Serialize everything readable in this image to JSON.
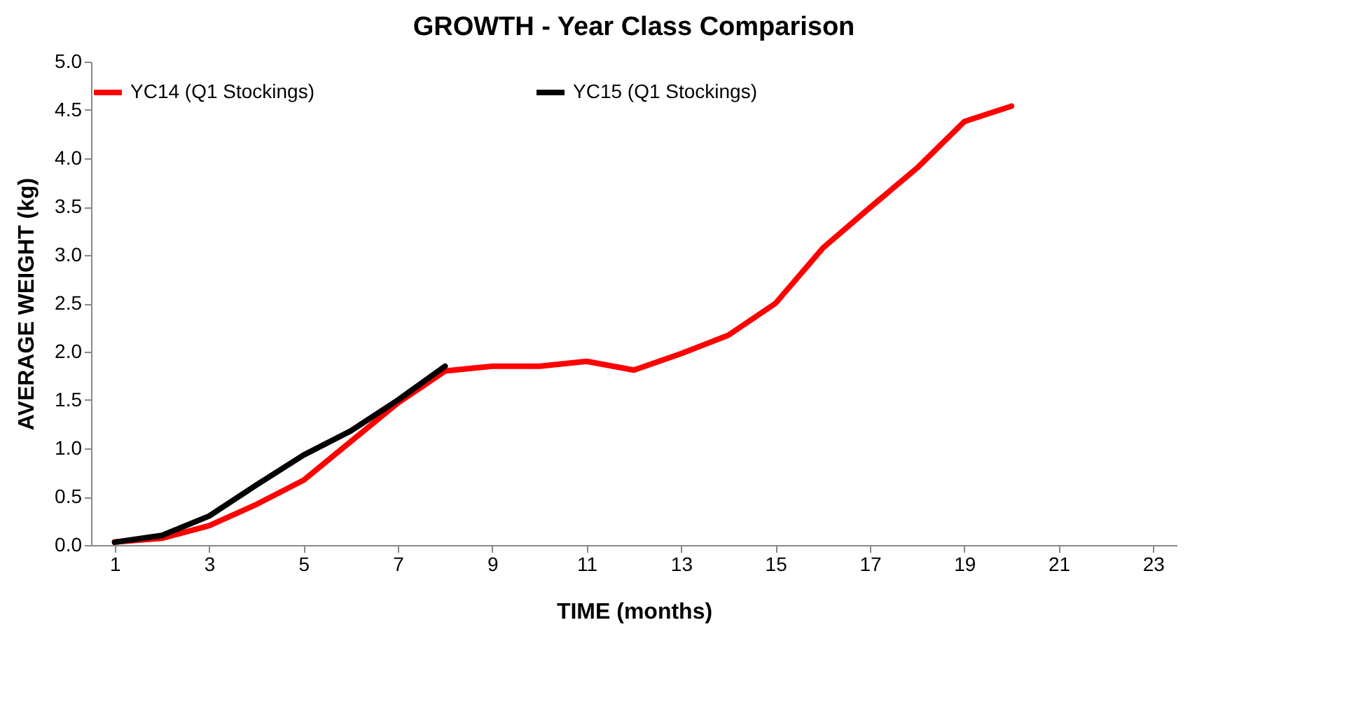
{
  "chart_data": {
    "type": "line",
    "title": "GROWTH - Year Class Comparison",
    "xlabel": "TIME (months)",
    "ylabel": "AVERAGE WEIGHT (kg)",
    "x": [
      1,
      2,
      3,
      4,
      5,
      6,
      7,
      8,
      9,
      10,
      11,
      12,
      13,
      14,
      15,
      16,
      17,
      18,
      19,
      20
    ],
    "series": [
      {
        "name": "YC14 (Q1 Stockings)",
        "color": "#ff0000",
        "values": [
          0.03,
          0.07,
          0.2,
          0.42,
          0.67,
          1.07,
          1.47,
          1.8,
          1.85,
          1.85,
          1.9,
          1.81,
          1.98,
          2.17,
          2.5,
          3.07,
          3.49,
          3.9,
          4.38,
          4.54
        ]
      },
      {
        "name": "YC15 (Q1 Stockings)",
        "color": "#000000",
        "values": [
          0.03,
          0.1,
          0.3,
          0.62,
          0.93,
          1.18,
          1.5,
          1.85,
          null,
          null,
          null,
          null,
          null,
          null,
          null,
          null,
          null,
          null,
          null,
          null
        ]
      }
    ],
    "xlim": [
      0.5,
      23.5
    ],
    "xticks": [
      1,
      3,
      5,
      7,
      9,
      11,
      13,
      15,
      17,
      19,
      21,
      23
    ],
    "ylim": [
      0,
      5
    ],
    "yticks": [
      {
        "value": 0,
        "label": "0.0"
      },
      {
        "value": 0.5,
        "label": "0.5"
      },
      {
        "value": 1,
        "label": "1.0"
      },
      {
        "value": 1.5,
        "label": "1.5"
      },
      {
        "value": 2,
        "label": "2.0"
      },
      {
        "value": 2.5,
        "label": "2.5"
      },
      {
        "value": 3,
        "label": "3.0"
      },
      {
        "value": 3.5,
        "label": "3.5"
      },
      {
        "value": 4,
        "label": "4.0"
      },
      {
        "value": 4.5,
        "label": "4.5"
      },
      {
        "value": 5,
        "label": "5.0"
      }
    ],
    "legend": "top",
    "grid": false,
    "marker": "none",
    "line_style": "solid"
  }
}
